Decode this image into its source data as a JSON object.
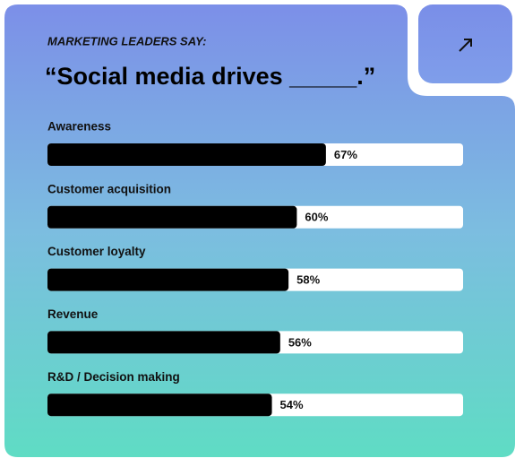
{
  "chart_data": {
    "type": "bar",
    "orientation": "horizontal",
    "subtitle": "MARKETING LEADERS SAY:",
    "title": "“Social media drives _____.”",
    "categories": [
      "Awareness",
      "Customer acquisition",
      "Customer loyalty",
      "Revenue",
      "R&D / Decision making"
    ],
    "values": [
      67,
      60,
      58,
      56,
      54
    ],
    "value_labels": [
      "67%",
      "60%",
      "58%",
      "56%",
      "54%"
    ],
    "color": "#000000",
    "xlim": [
      0,
      100
    ]
  }
}
